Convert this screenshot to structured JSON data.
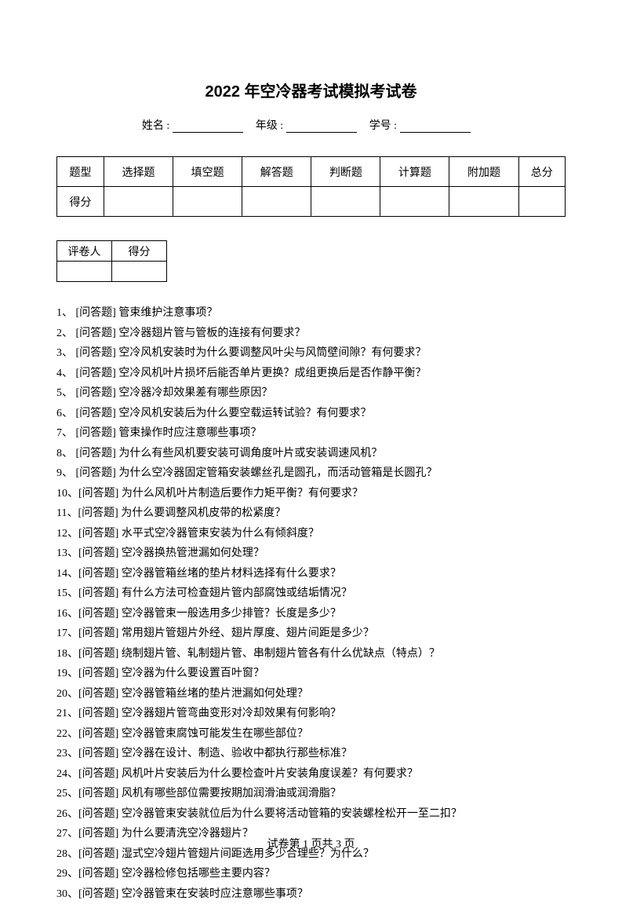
{
  "title": "2022 年空冷器考试模拟考试卷",
  "info": {
    "name_label": "姓名 :",
    "grade_label": "年级 :",
    "id_label": "学号 :"
  },
  "score_table": {
    "row1": [
      "题型",
      "选择题",
      "填空题",
      "解答题",
      "判断题",
      "计算题",
      "附加题",
      "总分"
    ],
    "row2_label": "得分"
  },
  "grader_table": {
    "grader_label": "评卷人",
    "score_label": "得分"
  },
  "questions": [
    "1、 [问答题] 管束维护注意事项？",
    "2、 [问答题] 空冷器翅片管与管板的连接有何要求？",
    "3、 [问答题] 空冷风机安装时为什么要调整风叶尖与风筒壁间隙？有何要求？",
    "4、 [问答题] 空冷风机叶片损坏后能否单片更换？成组更换后是否作静平衡？",
    "5、 [问答题] 空冷器冷却效果差有哪些原因？",
    "6、 [问答题] 空冷风机安装后为什么要空载运转试验？有何要求？",
    "7、 [问答题] 管束操作时应注意哪些事项？",
    "8、 [问答题] 为什么有些风机要安装可调角度叶片或安装调速风机？",
    "9、 [问答题] 为什么空冷器固定管箱安装螺丝孔是圆孔，而活动管箱是长圆孔？",
    "10、[问答题] 为什么风机叶片制造后要作力矩平衡？有何要求？",
    "11、[问答题] 为什么要调整风机皮带的松紧度？",
    "12、[问答题] 水平式空冷器管束安装为什么有倾斜度？",
    "13、[问答题] 空冷器换热管泄漏如何处理？",
    "14、[问答题] 空冷器管箱丝堵的垫片材料选择有什么要求？",
    "15、[问答题] 有什么方法可检查翅片管内部腐蚀或结垢情况？",
    "16、[问答题] 空冷器管束一般选用多少排管？长度是多少？",
    "17、[问答题] 常用翅片管翅片外经、翅片厚度、翅片间距是多少？",
    "18、[问答题] 绕制翅片管、轧制翅片管、串制翅片管各有什么优缺点（特点）？",
    "19、[问答题] 空冷器为什么要设置百叶窗？",
    "20、[问答题] 空冷器管箱丝堵的垫片泄漏如何处理？",
    "21、[问答题] 空冷器翅片管弯曲变形对冷却效果有何影响？",
    "22、[问答题] 空冷器管束腐蚀可能发生在哪些部位？",
    "23、[问答题] 空冷器在设计、制造、验收中都执行那些标准？",
    "24、[问答题] 风机叶片安装后为什么要检查叶片安装角度误差？有何要求？",
    "25、[问答题] 风机有哪些部位需要按期加润滑油或润滑脂？",
    "26、[问答题] 空冷器管束安装就位后为什么要将活动管箱的安装螺栓松开一至二扣？",
    "27、[问答题] 为什么要清洗空冷器翅片？",
    "28、[问答题] 湿式空冷翅片管翅片间距选用多少合理些？为什么？",
    "29、[问答题] 空冷器检修包括哪些主要内容？",
    "30、[问答题] 空冷器管束在安装时应注意哪些事项？"
  ],
  "footer": "试卷第 1 页共 3 页"
}
